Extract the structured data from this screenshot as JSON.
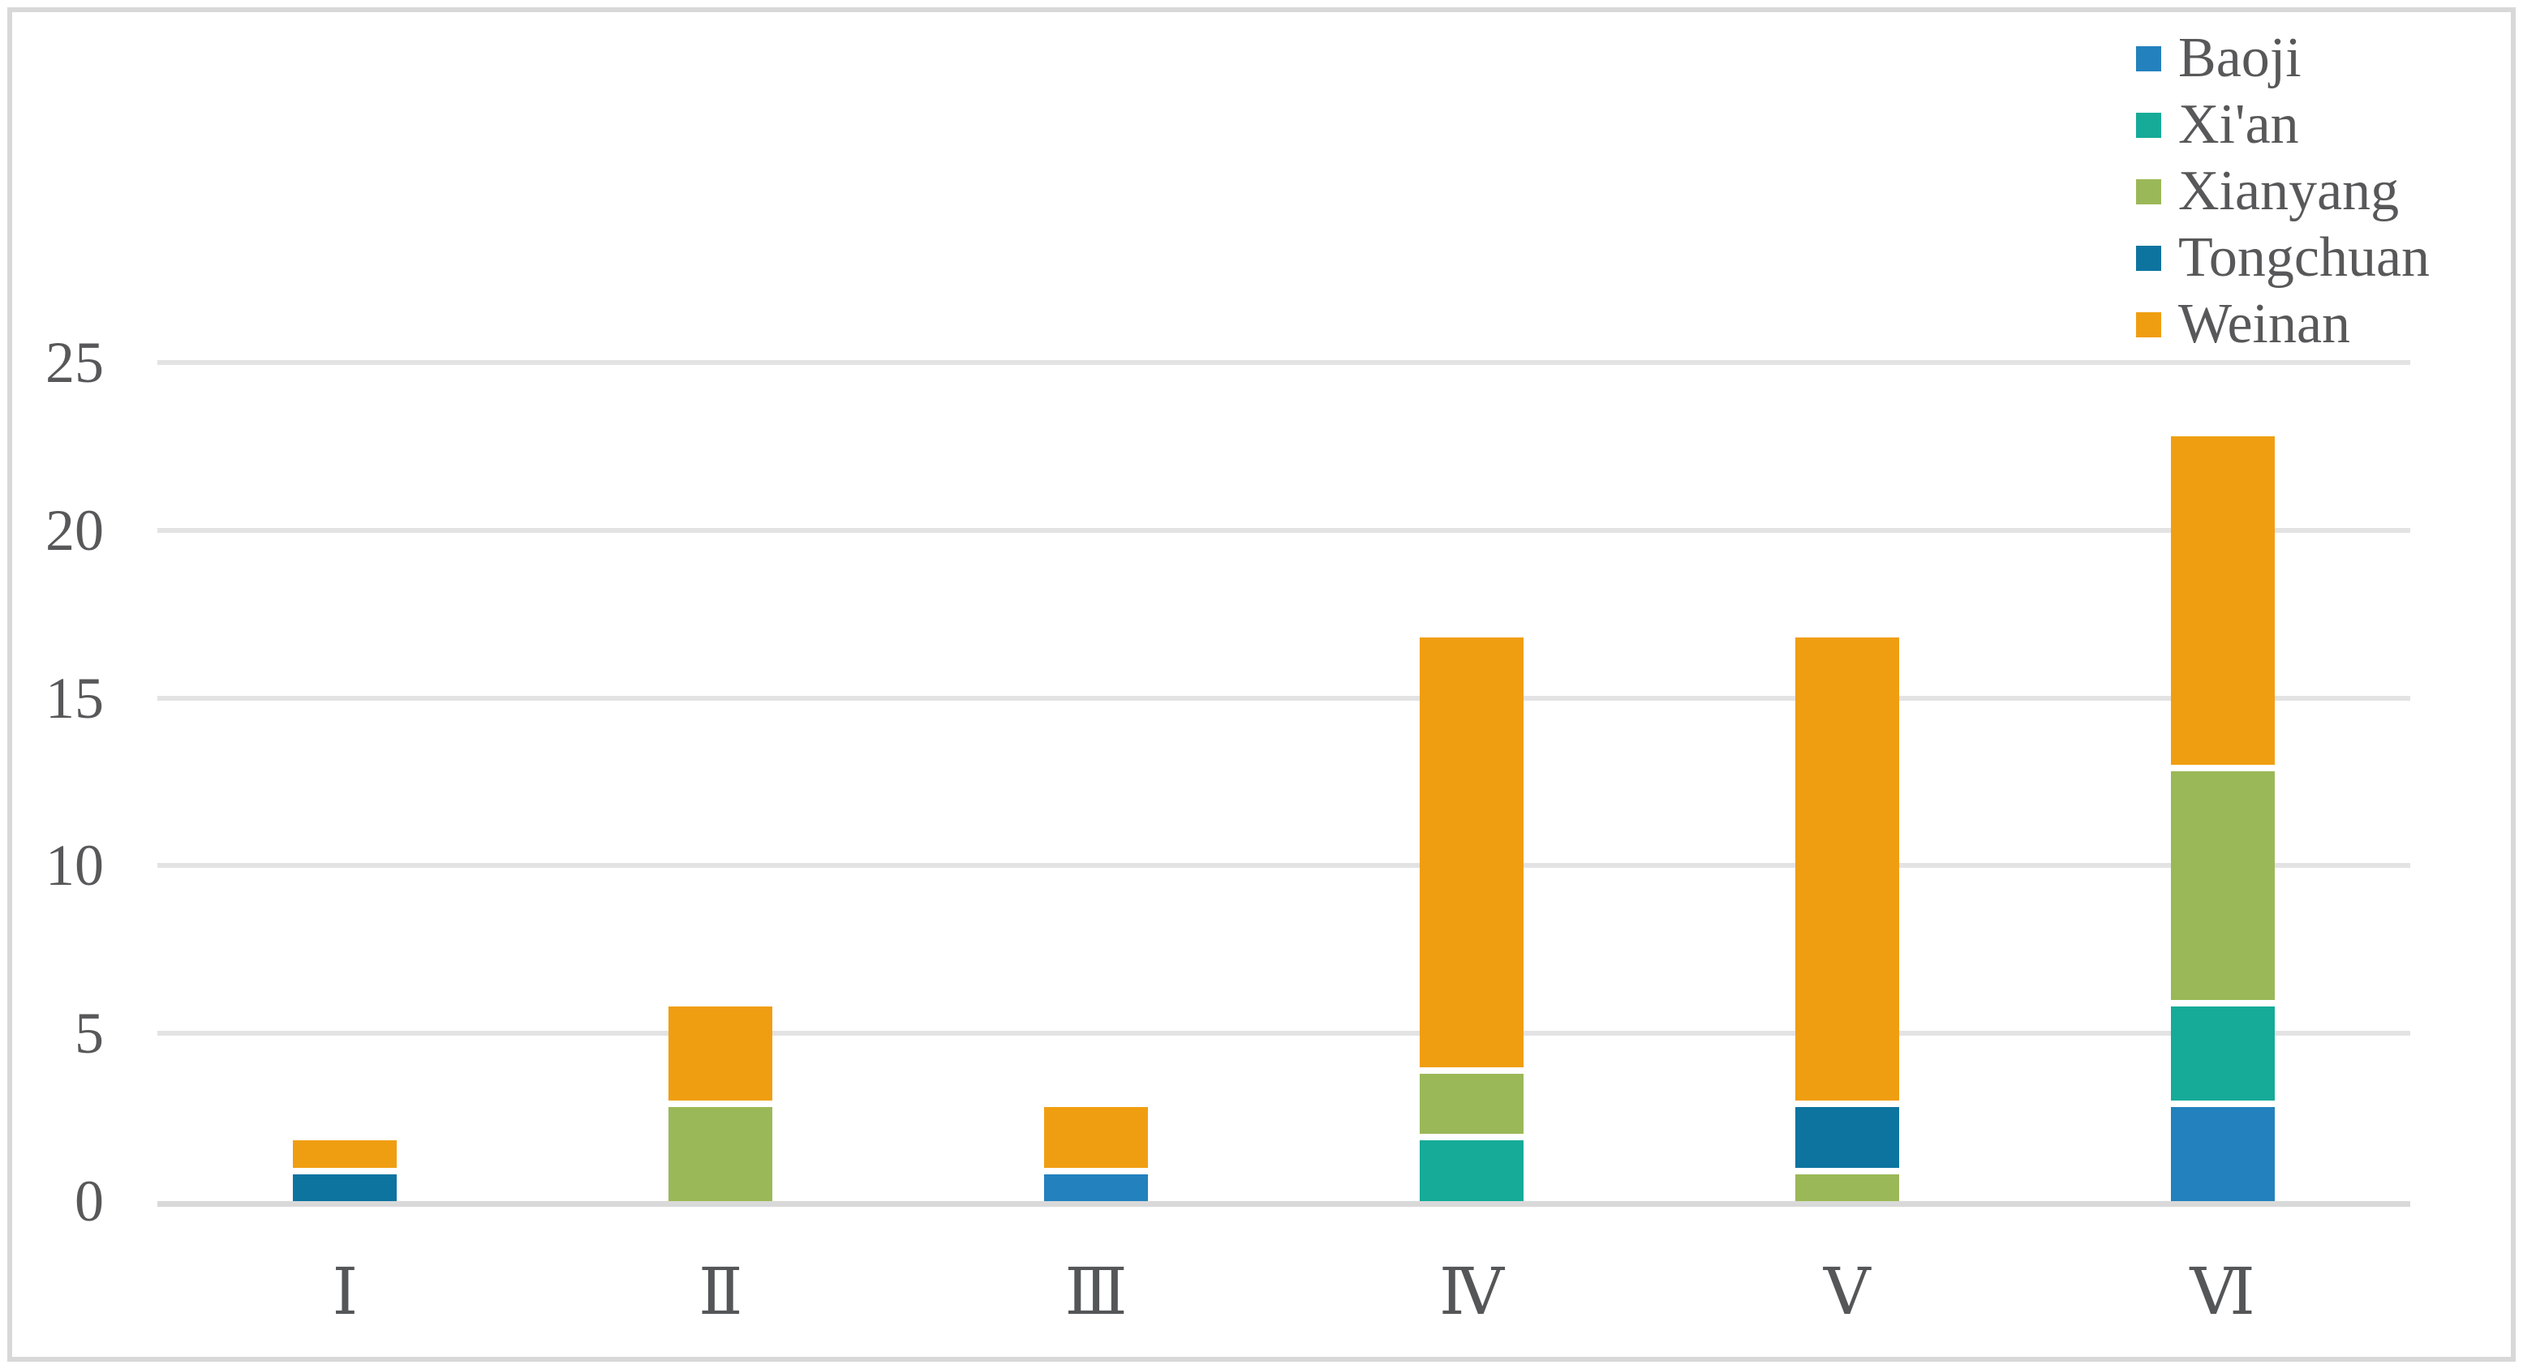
{
  "chart_data": {
    "type": "bar",
    "stacked": true,
    "title": "",
    "xlabel": "",
    "ylabel": "",
    "categories": [
      "Ⅰ",
      "Ⅱ",
      "Ⅲ",
      "Ⅳ",
      "Ⅴ",
      "Ⅵ"
    ],
    "series": [
      {
        "name": "Baoji",
        "color": "#2381BE",
        "values": [
          0,
          0,
          1,
          0,
          0,
          3
        ]
      },
      {
        "name": "Xi'an",
        "color": "#15AB98",
        "values": [
          0,
          0,
          0,
          2,
          0,
          3
        ]
      },
      {
        "name": "Xianyang",
        "color": "#9BB858",
        "values": [
          0,
          3,
          0,
          2,
          1,
          7
        ]
      },
      {
        "name": "Tongchuan",
        "color": "#0D74A0",
        "values": [
          1,
          0,
          0,
          0,
          2,
          0
        ]
      },
      {
        "name": "Weinan",
        "color": "#F09E11",
        "values": [
          1,
          3,
          2,
          13,
          14,
          10
        ]
      }
    ],
    "totals": [
      2,
      6,
      3,
      17,
      17,
      23
    ],
    "y_axis": {
      "min": 0,
      "max": 25,
      "tick_step": 5,
      "ticks": [
        0,
        5,
        10,
        15,
        20,
        25
      ]
    },
    "legend_position": "top-right",
    "legend_order": [
      "Baoji",
      "Xi'an",
      "Xianyang",
      "Tongchuan",
      "Weinan"
    ],
    "grid": "horizontal"
  },
  "colors": {
    "background": "#FFFFFF",
    "frame_border": "#D8D8D8",
    "gridline": "#E3E3E3",
    "axis_line": "#D9D9D9",
    "text": "#58585A",
    "segment_gap": "#FFFFFF"
  }
}
